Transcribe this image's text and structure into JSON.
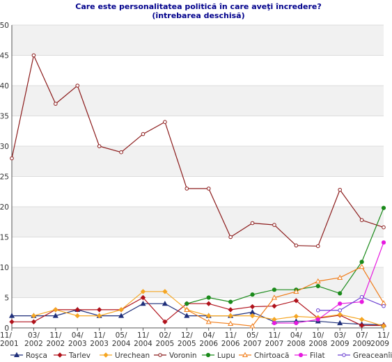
{
  "chart_data": {
    "type": "line",
    "title": "Care este personalitatea politică în care aveţi încredere?",
    "subtitle": "(întrebarea deschisă)",
    "xlabel": "",
    "ylabel": "",
    "ylim": [
      0,
      50
    ],
    "yticks": [
      0,
      5,
      10,
      15,
      20,
      25,
      30,
      35,
      40,
      45,
      50
    ],
    "grid": true,
    "legend_position": "bottom",
    "categories": [
      "11/2001",
      "03/2002",
      "11/2002",
      "04/2003",
      "11/2003",
      "05/2004",
      "11/2004",
      "02/2005",
      "12/2005",
      "04/2006",
      "11/2006",
      "05/2007",
      "11/2007",
      "04/2008",
      "10/2008",
      "03/2009",
      "07/2009",
      "11/2009"
    ],
    "category_labels": [
      [
        "11/",
        "2001"
      ],
      [
        "03/",
        "2002"
      ],
      [
        "11/",
        "2002"
      ],
      [
        "04/",
        "2003"
      ],
      [
        "11/",
        "2003"
      ],
      [
        "05/",
        "2004"
      ],
      [
        "11/",
        "2004"
      ],
      [
        "02/",
        "2005"
      ],
      [
        "12/",
        "2005"
      ],
      [
        "04/",
        "2006"
      ],
      [
        "11/",
        "2006"
      ],
      [
        "05/",
        "2007"
      ],
      [
        "11/",
        "2007"
      ],
      [
        "04/",
        "2008"
      ],
      [
        "10/",
        "2008"
      ],
      [
        "03/",
        "2009"
      ],
      [
        "07/",
        "2009"
      ],
      [
        "11/",
        "2009"
      ]
    ],
    "series": [
      {
        "name": "Roşca",
        "color": "#1f2f7a",
        "marker": "triangle",
        "values": [
          2,
          2,
          2,
          3,
          2,
          2,
          4,
          4,
          2,
          2,
          2,
          2.6,
          1,
          1.1,
          1.1,
          0.8,
          0.6,
          0.5
        ]
      },
      {
        "name": "Tarlev",
        "color": "#b0121b",
        "marker": "diamond",
        "values": [
          1,
          1,
          3,
          3,
          3,
          3,
          5,
          1,
          4,
          4,
          3,
          3.5,
          3.6,
          4.5,
          1.6,
          2.1,
          0.4,
          0.4
        ]
      },
      {
        "name": "Urechean",
        "color": "#f5a623",
        "marker": "diamond",
        "values": [
          null,
          2,
          3,
          2,
          2,
          3,
          6,
          6,
          3,
          2,
          2,
          2,
          1.4,
          1.9,
          1.7,
          2.2,
          1.4,
          0.3
        ]
      },
      {
        "name": "Voronin",
        "color": "#8b1a1a",
        "marker": "circle-open",
        "values": [
          28,
          45,
          37,
          40,
          30,
          29,
          32,
          34,
          23,
          23,
          15,
          17.3,
          17,
          13.6,
          13.5,
          22.8,
          17.8,
          16.6
        ]
      },
      {
        "name": "Lupu",
        "color": "#1a8a1a",
        "marker": "circle",
        "values": [
          null,
          null,
          null,
          null,
          null,
          null,
          null,
          null,
          4,
          5,
          4.3,
          5.5,
          6.3,
          6.3,
          6.9,
          5.7,
          10.9,
          19.8
        ]
      },
      {
        "name": "Chirtoacă",
        "color": "#f07d1a",
        "marker": "triangle-open",
        "values": [
          null,
          null,
          null,
          null,
          null,
          null,
          null,
          null,
          3,
          1,
          0.7,
          0.3,
          5,
          6,
          7.7,
          8.3,
          10.1,
          4.1
        ]
      },
      {
        "name": "Filat",
        "color": "#e61adf",
        "marker": "circle",
        "values": [
          null,
          null,
          null,
          null,
          null,
          null,
          null,
          null,
          null,
          null,
          null,
          null,
          0.8,
          0.8,
          1.4,
          4,
          4.3,
          14.1
        ]
      },
      {
        "name": "Greaceanîi",
        "color": "#6a3fd1",
        "marker": "circle-open",
        "values": [
          null,
          null,
          null,
          null,
          null,
          null,
          null,
          null,
          null,
          null,
          null,
          null,
          null,
          null,
          2.9,
          2.9,
          5.1,
          3.6
        ]
      }
    ]
  }
}
